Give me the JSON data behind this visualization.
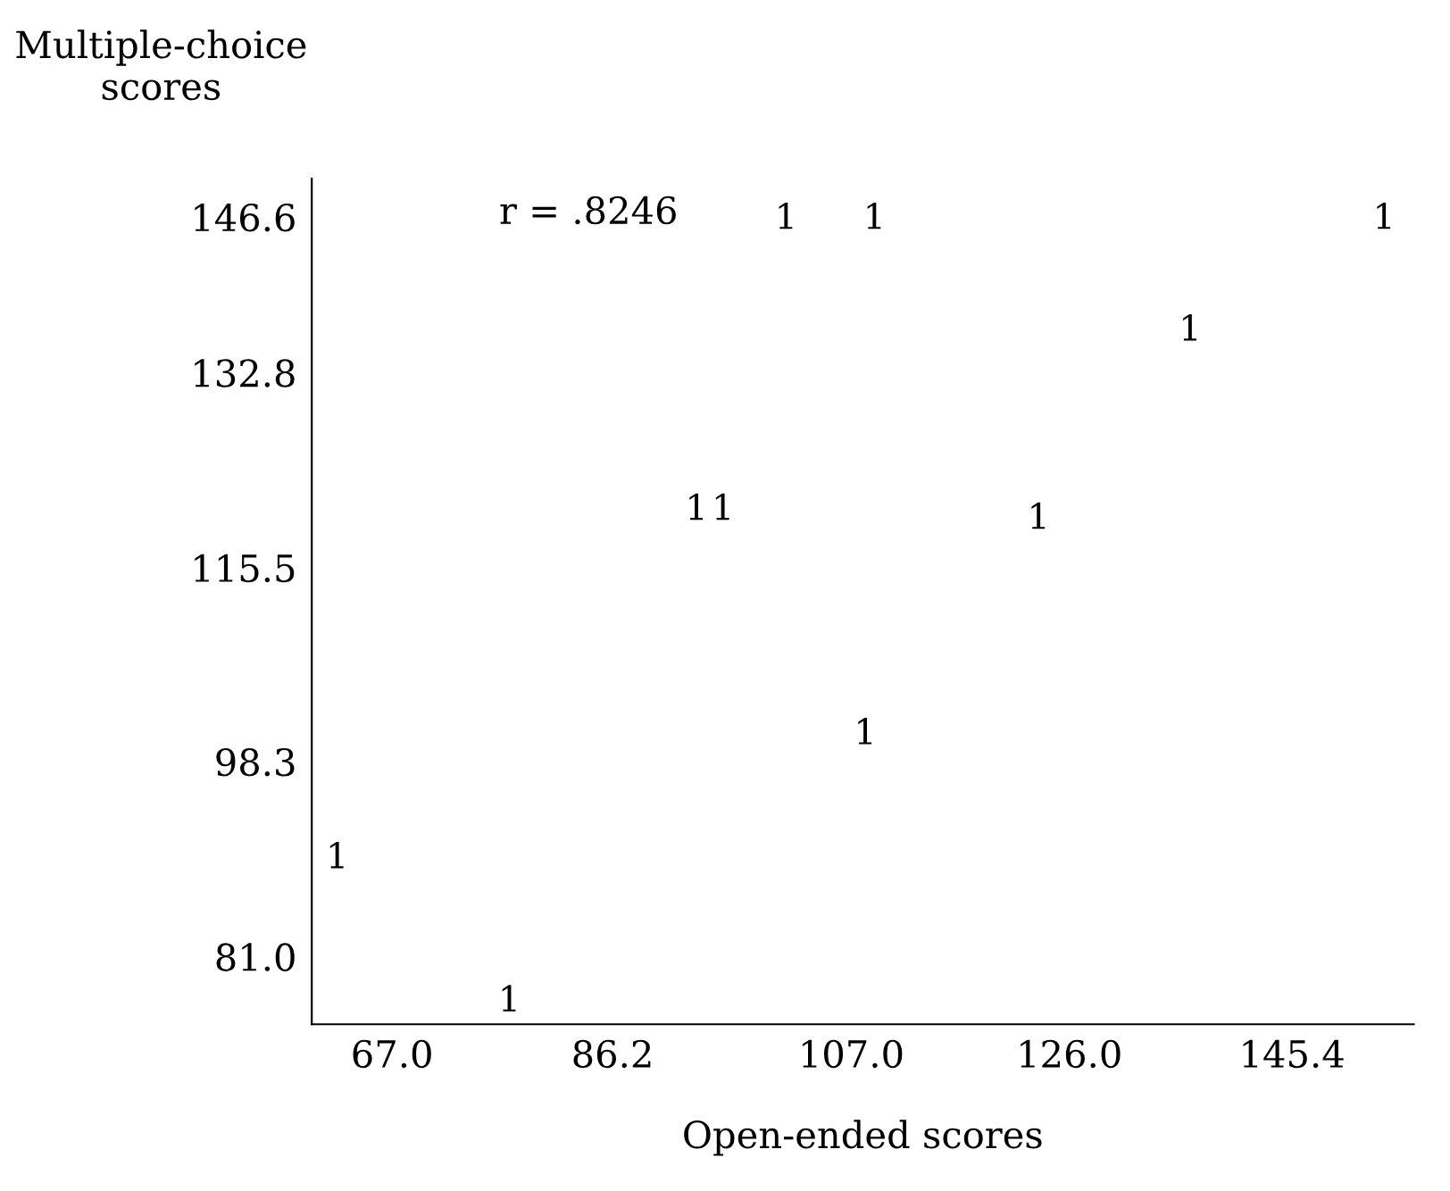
{
  "chart_data": {
    "type": "scatter",
    "xlabel": "Open-ended scores",
    "ylabel": "Multiple-choice\nscores",
    "annotations": [
      "r = .8246"
    ],
    "x": [
      62,
      77,
      93.3,
      95.6,
      101.1,
      108.8,
      108,
      123.1,
      136.3,
      153.2
    ],
    "values": [
      89.7,
      77,
      120.6,
      120.6,
      146.4,
      146.4,
      100.7,
      119.8,
      136.5,
      146.4
    ],
    "color": "#000000",
    "grid": false,
    "xlim": [
      60,
      156
    ],
    "ylim": [
      75,
      150
    ],
    "xticks": [
      {
        "value": 67,
        "label": "67.0"
      },
      {
        "value": 86.2,
        "label": "86.2"
      },
      {
        "value": 107,
        "label": "107.0"
      },
      {
        "value": 126,
        "label": "126.0"
      },
      {
        "value": 145.4,
        "label": "145.4"
      }
    ],
    "yticks": [
      {
        "value": 81,
        "label": "81.0"
      },
      {
        "value": 98.3,
        "label": "98.3"
      },
      {
        "value": 115.5,
        "label": "115.5"
      },
      {
        "value": 132.8,
        "label": "132.8"
      },
      {
        "value": 146.6,
        "label": "146.6"
      }
    ]
  }
}
